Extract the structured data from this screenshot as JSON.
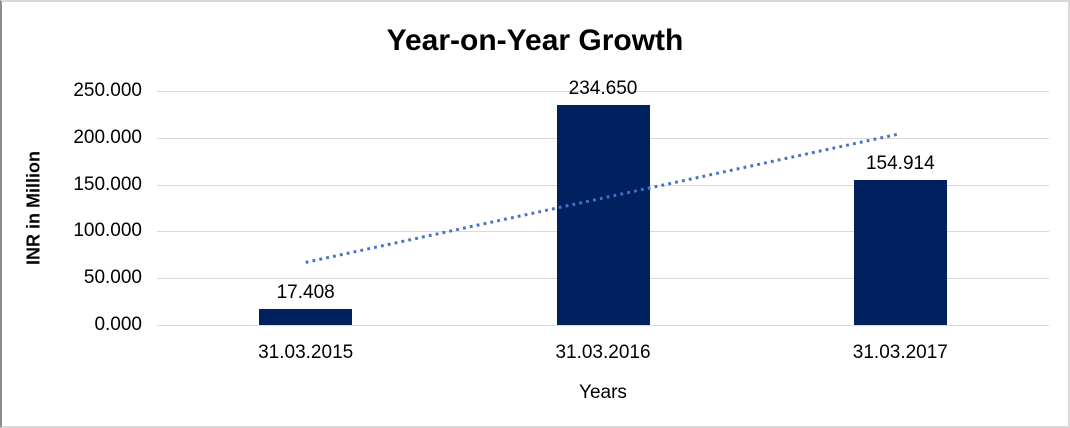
{
  "chart_data": {
    "type": "bar",
    "title": "Year-on-Year Growth",
    "xlabel": "Years",
    "ylabel": "INR in Million",
    "categories": [
      "31.03.2015",
      "31.03.2016",
      "31.03.2017"
    ],
    "values": [
      17.408,
      234.65,
      154.914
    ],
    "data_labels": [
      "17.408",
      "234.650",
      "154.914"
    ],
    "ylim": [
      0,
      250
    ],
    "ytick_step": 50,
    "yticks": [
      {
        "value": 0,
        "label": "0.000"
      },
      {
        "value": 50,
        "label": "50.000"
      },
      {
        "value": 100,
        "label": "100.000"
      },
      {
        "value": 150,
        "label": "150.000"
      },
      {
        "value": 200,
        "label": "200.000"
      },
      {
        "value": 250,
        "label": "250.000"
      }
    ],
    "grid": true,
    "legend": "none",
    "colors": {
      "bar": "#002060",
      "trendline": "#4472C4",
      "gridline": "#D9D9D9",
      "text": "#000000"
    },
    "trendline": {
      "type": "linear",
      "style": "dotted",
      "start_value": 66.9,
      "end_value": 204.4
    }
  }
}
